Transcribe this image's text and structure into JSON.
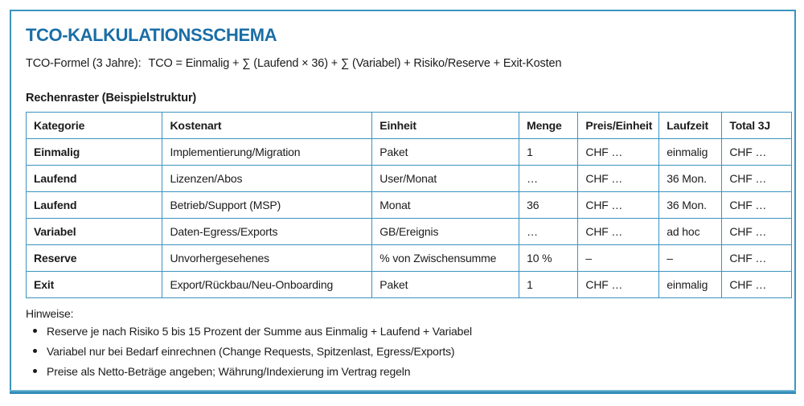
{
  "title": "TCO-KALKULATIONSSCHEMA",
  "formula": {
    "label": "TCO-Formel (3 Jahre):",
    "expression": "TCO = Einmalig + ∑ (Laufend × 36) + ∑ (Variabel) + Risiko/Reserve + Exit-Kosten"
  },
  "table_caption": "Rechenraster (Beispielstruktur)",
  "table": {
    "headers": [
      "Kategorie",
      "Kostenart",
      "Einheit",
      "Menge",
      "Preis/Einheit",
      "Laufzeit",
      "Total 3J"
    ],
    "col_widths_pct": [
      17.8,
      27.4,
      19.2,
      7.7,
      10.6,
      8.2,
      9.1
    ],
    "rows": [
      [
        "Einmalig",
        "Implementierung/Migration",
        "Paket",
        "1",
        "CHF …",
        "einmalig",
        "CHF …"
      ],
      [
        "Laufend",
        "Lizenzen/Abos",
        "User/Monat",
        "…",
        "CHF …",
        "36 Mon.",
        "CHF …"
      ],
      [
        "Laufend",
        "Betrieb/Support (MSP)",
        "Monat",
        "36",
        "CHF …",
        "36 Mon.",
        "CHF …"
      ],
      [
        "Variabel",
        "Daten-Egress/Exports",
        "GB/Ereignis",
        "…",
        "CHF …",
        "ad hoc",
        "CHF …"
      ],
      [
        "Reserve",
        "Unvorhergesehenes",
        "% von Zwischensumme",
        "10 %",
        "–",
        "–",
        "CHF …"
      ],
      [
        "Exit",
        "Export/Rückbau/Neu-Onboarding",
        "Paket",
        "1",
        "CHF …",
        "einmalig",
        "CHF …"
      ]
    ]
  },
  "notes": {
    "heading": "Hinweise:",
    "items": [
      "Reserve je nach Risiko 5 bis 15 Prozent der Summe aus Einmalig + Laufend + Variabel",
      "Variabel nur bei Bedarf einrechnen (Change Requests, Spitzenlast, Egress/Exports)",
      "Preise als Netto-Beträge angeben; Währung/Indexierung im Vertrag regeln"
    ]
  },
  "colors": {
    "border_teal": "#3b94c0",
    "title_blue": "#1a6ea6",
    "text": "#1b1b1b"
  }
}
